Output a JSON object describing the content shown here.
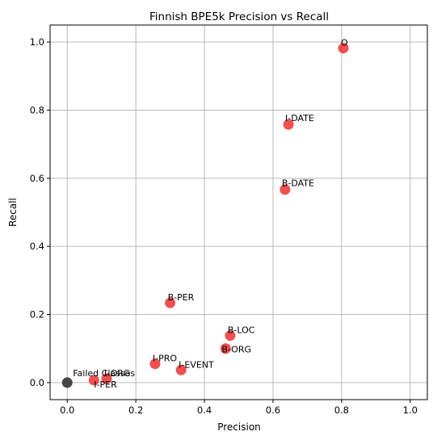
{
  "chart_data": {
    "type": "scatter",
    "title": "Finnish BPE5k Precision vs Recall",
    "xlabel": "Precision",
    "ylabel": "Recall",
    "xlim": [
      -0.05,
      1.05
    ],
    "ylim": [
      -0.05,
      1.05
    ],
    "xticks": [
      "0.0",
      "0.2",
      "0.4",
      "0.6",
      "0.8",
      "1.0"
    ],
    "yticks": [
      "0.0",
      "0.2",
      "0.4",
      "0.6",
      "0.8",
      "1.0"
    ],
    "grid": true,
    "colors": {
      "point": "#f03030",
      "failed": "#333333"
    },
    "points": [
      {
        "label": "O",
        "x": 0.805,
        "y": 0.982
      },
      {
        "label": "I-DATE",
        "x": 0.645,
        "y": 0.758
      },
      {
        "label": "B-DATE",
        "x": 0.635,
        "y": 0.567
      },
      {
        "label": "B-PER",
        "x": 0.3,
        "y": 0.234
      },
      {
        "label": "B-LOC",
        "x": 0.475,
        "y": 0.138
      },
      {
        "label": "B-ORG",
        "x": 0.462,
        "y": 0.1
      },
      {
        "label": "I-PRO",
        "x": 0.256,
        "y": 0.055
      },
      {
        "label": "I-EVENT",
        "x": 0.332,
        "y": 0.037
      },
      {
        "label": "I-ORG",
        "x": 0.115,
        "y": 0.012
      },
      {
        "label": "I-PER",
        "x": 0.078,
        "y": 0.007
      }
    ],
    "failed": {
      "label": "Failed Classes",
      "x": 0.0,
      "y": 0.0
    }
  }
}
